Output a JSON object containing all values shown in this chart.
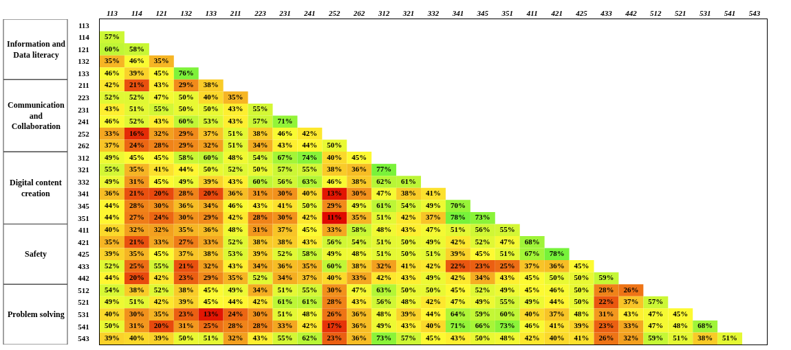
{
  "chart_data": {
    "type": "heatmap",
    "categories": [
      "113",
      "114",
      "121",
      "132",
      "133",
      "211",
      "223",
      "231",
      "241",
      "252",
      "262",
      "312",
      "321",
      "332",
      "341",
      "345",
      "351",
      "411",
      "421",
      "425",
      "433",
      "442",
      "512",
      "521",
      "531",
      "541",
      "543"
    ],
    "y_categories": [
      "113",
      "114",
      "121",
      "132",
      "133",
      "211",
      "223",
      "231",
      "241",
      "252",
      "262",
      "312",
      "321",
      "332",
      "341",
      "345",
      "351",
      "411",
      "421",
      "425",
      "433",
      "442",
      "512",
      "521",
      "531",
      "541",
      "543"
    ],
    "annotations": [
      "Information and Data literacy",
      "Communication and Collaboration",
      "Digital content creation",
      "Safety",
      "Problem solving"
    ],
    "cells": [
      [
        null,
        null,
        null,
        null,
        null,
        null,
        null,
        null,
        null,
        null,
        null,
        null,
        null,
        null,
        null,
        null,
        null,
        null,
        null,
        null,
        null,
        null,
        null,
        null,
        null,
        null,
        null
      ],
      [
        57,
        null,
        null,
        null,
        null,
        null,
        null,
        null,
        null,
        null,
        null,
        null,
        null,
        null,
        null,
        null,
        null,
        null,
        null,
        null,
        null,
        null,
        null,
        null,
        null,
        null,
        null
      ],
      [
        60,
        58,
        null,
        null,
        null,
        null,
        null,
        null,
        null,
        null,
        null,
        null,
        null,
        null,
        null,
        null,
        null,
        null,
        null,
        null,
        null,
        null,
        null,
        null,
        null,
        null,
        null
      ],
      [
        35,
        46,
        35,
        null,
        null,
        null,
        null,
        null,
        null,
        null,
        null,
        null,
        null,
        null,
        null,
        null,
        null,
        null,
        null,
        null,
        null,
        null,
        null,
        null,
        null,
        null,
        null
      ],
      [
        46,
        39,
        45,
        76,
        null,
        null,
        null,
        null,
        null,
        null,
        null,
        null,
        null,
        null,
        null,
        null,
        null,
        null,
        null,
        null,
        null,
        null,
        null,
        null,
        null,
        null,
        null
      ],
      [
        42,
        21,
        43,
        29,
        38,
        null,
        null,
        null,
        null,
        null,
        null,
        null,
        null,
        null,
        null,
        null,
        null,
        null,
        null,
        null,
        null,
        null,
        null,
        null,
        null,
        null,
        null
      ],
      [
        52,
        52,
        47,
        50,
        40,
        35,
        null,
        null,
        null,
        null,
        null,
        null,
        null,
        null,
        null,
        null,
        null,
        null,
        null,
        null,
        null,
        null,
        null,
        null,
        null,
        null,
        null
      ],
      [
        43,
        51,
        55,
        50,
        50,
        43,
        55,
        null,
        null,
        null,
        null,
        null,
        null,
        null,
        null,
        null,
        null,
        null,
        null,
        null,
        null,
        null,
        null,
        null,
        null,
        null,
        null
      ],
      [
        46,
        52,
        43,
        60,
        53,
        43,
        57,
        71,
        null,
        null,
        null,
        null,
        null,
        null,
        null,
        null,
        null,
        null,
        null,
        null,
        null,
        null,
        null,
        null,
        null,
        null,
        null
      ],
      [
        33,
        16,
        32,
        29,
        37,
        51,
        38,
        46,
        42,
        null,
        null,
        null,
        null,
        null,
        null,
        null,
        null,
        null,
        null,
        null,
        null,
        null,
        null,
        null,
        null,
        null,
        null
      ],
      [
        37,
        24,
        28,
        29,
        32,
        51,
        34,
        43,
        44,
        50,
        null,
        null,
        null,
        null,
        null,
        null,
        null,
        null,
        null,
        null,
        null,
        null,
        null,
        null,
        null,
        null,
        null
      ],
      [
        49,
        45,
        45,
        58,
        60,
        48,
        54,
        67,
        74,
        40,
        45,
        null,
        null,
        null,
        null,
        null,
        null,
        null,
        null,
        null,
        null,
        null,
        null,
        null,
        null,
        null,
        null
      ],
      [
        55,
        35,
        41,
        44,
        50,
        52,
        50,
        57,
        55,
        38,
        36,
        77,
        null,
        null,
        null,
        null,
        null,
        null,
        null,
        null,
        null,
        null,
        null,
        null,
        null,
        null,
        null
      ],
      [
        49,
        31,
        45,
        49,
        39,
        43,
        60,
        56,
        63,
        46,
        38,
        62,
        61,
        null,
        null,
        null,
        null,
        null,
        null,
        null,
        null,
        null,
        null,
        null,
        null,
        null,
        null
      ],
      [
        36,
        21,
        20,
        28,
        20,
        36,
        31,
        30,
        40,
        13,
        30,
        47,
        38,
        41,
        null,
        null,
        null,
        null,
        null,
        null,
        null,
        null,
        null,
        null,
        null,
        null,
        null
      ],
      [
        44,
        28,
        30,
        36,
        34,
        46,
        43,
        41,
        50,
        29,
        49,
        61,
        54,
        49,
        70,
        null,
        null,
        null,
        null,
        null,
        null,
        null,
        null,
        null,
        null,
        null,
        null
      ],
      [
        44,
        27,
        24,
        30,
        29,
        42,
        28,
        30,
        42,
        11,
        35,
        51,
        42,
        37,
        78,
        73,
        null,
        null,
        null,
        null,
        null,
        null,
        null,
        null,
        null,
        null,
        null
      ],
      [
        40,
        32,
        32,
        35,
        36,
        48,
        31,
        37,
        45,
        33,
        58,
        48,
        43,
        47,
        51,
        56,
        55,
        null,
        null,
        null,
        null,
        null,
        null,
        null,
        null,
        null,
        null
      ],
      [
        35,
        21,
        33,
        27,
        33,
        52,
        38,
        38,
        43,
        56,
        54,
        51,
        50,
        49,
        42,
        52,
        47,
        68,
        null,
        null,
        null,
        null,
        null,
        null,
        null,
        null,
        null
      ],
      [
        39,
        35,
        45,
        37,
        38,
        53,
        39,
        52,
        58,
        49,
        48,
        51,
        50,
        51,
        39,
        45,
        51,
        67,
        78,
        null,
        null,
        null,
        null,
        null,
        null,
        null,
        null
      ],
      [
        52,
        25,
        55,
        21,
        32,
        43,
        34,
        36,
        35,
        60,
        38,
        32,
        41,
        42,
        22,
        23,
        25,
        37,
        36,
        45,
        null,
        null,
        null,
        null,
        null,
        null,
        null
      ],
      [
        44,
        20,
        42,
        23,
        29,
        35,
        52,
        34,
        37,
        40,
        33,
        42,
        43,
        49,
        42,
        34,
        43,
        45,
        50,
        50,
        59,
        null,
        null,
        null,
        null,
        null,
        null
      ],
      [
        54,
        38,
        52,
        38,
        45,
        49,
        34,
        51,
        55,
        30,
        47,
        63,
        50,
        50,
        45,
        52,
        49,
        45,
        46,
        50,
        28,
        26,
        null,
        null,
        null,
        null,
        null
      ],
      [
        49,
        51,
        42,
        39,
        45,
        44,
        42,
        61,
        61,
        28,
        43,
        56,
        48,
        42,
        47,
        49,
        55,
        49,
        44,
        50,
        22,
        37,
        57,
        null,
        null,
        null,
        null
      ],
      [
        40,
        30,
        35,
        23,
        13,
        24,
        30,
        51,
        48,
        26,
        36,
        48,
        39,
        44,
        64,
        59,
        60,
        40,
        37,
        48,
        31,
        43,
        47,
        45,
        null,
        null,
        null
      ],
      [
        50,
        31,
        20,
        31,
        25,
        28,
        28,
        33,
        42,
        17,
        36,
        49,
        43,
        40,
        71,
        66,
        73,
        46,
        41,
        39,
        23,
        33,
        47,
        48,
        68,
        null,
        null
      ],
      [
        39,
        40,
        39,
        50,
        51,
        32,
        43,
        55,
        62,
        23,
        36,
        73,
        57,
        45,
        43,
        50,
        48,
        42,
        40,
        41,
        26,
        32,
        59,
        51,
        38,
        51,
        null
      ]
    ],
    "cell_labels": [
      [
        null,
        null,
        null,
        null,
        null,
        null,
        null,
        null,
        null,
        null,
        null,
        null,
        null,
        null,
        null,
        null,
        null,
        null,
        null,
        null,
        null,
        null,
        null,
        null,
        null,
        null,
        null
      ],
      [
        "57%",
        null,
        null,
        null,
        null,
        null,
        null,
        null,
        null,
        null,
        null,
        null,
        null,
        null,
        null,
        null,
        null,
        null,
        null,
        null,
        null,
        null,
        null,
        null,
        null,
        null,
        null
      ],
      [
        "60%",
        "58%",
        null,
        null,
        null,
        null,
        null,
        null,
        null,
        null,
        null,
        null,
        null,
        null,
        null,
        null,
        null,
        null,
        null,
        null,
        null,
        null,
        null,
        null,
        null,
        null,
        null
      ],
      [
        "35%",
        "46%",
        "35%",
        null,
        null,
        null,
        null,
        null,
        null,
        null,
        null,
        null,
        null,
        null,
        null,
        null,
        null,
        null,
        null,
        null,
        null,
        null,
        null,
        null,
        null,
        null,
        null
      ],
      [
        "46%",
        "39%",
        "45%",
        "76%",
        null,
        null,
        null,
        null,
        null,
        null,
        null,
        null,
        null,
        null,
        null,
        null,
        null,
        null,
        null,
        null,
        null,
        null,
        null,
        null,
        null,
        null,
        null
      ],
      [
        "42%",
        "21%",
        "43%",
        "29%",
        "38%",
        null,
        null,
        null,
        null,
        null,
        null,
        null,
        null,
        null,
        null,
        null,
        null,
        null,
        null,
        null,
        null,
        null,
        null,
        null,
        null,
        null,
        null
      ],
      [
        "52%",
        "52%",
        "47%",
        "50%",
        "40%",
        "35%",
        null,
        null,
        null,
        null,
        null,
        null,
        null,
        null,
        null,
        null,
        null,
        null,
        null,
        null,
        null,
        null,
        null,
        null,
        null,
        null,
        null
      ],
      [
        "43%",
        "51%",
        "55%",
        "50%",
        "50%",
        "43%",
        "55%",
        null,
        null,
        null,
        null,
        null,
        null,
        null,
        null,
        null,
        null,
        null,
        null,
        null,
        null,
        null,
        null,
        null,
        null,
        null,
        null
      ],
      [
        "46%",
        "52%",
        "43%",
        "60%",
        "53%",
        "43%",
        "57%",
        "71%",
        null,
        null,
        null,
        null,
        null,
        null,
        null,
        null,
        null,
        null,
        null,
        null,
        null,
        null,
        null,
        null,
        null,
        null,
        null
      ],
      [
        "33%",
        "16%",
        "32%",
        "29%",
        "37%",
        "51%",
        "38%",
        "46%",
        "42%",
        null,
        null,
        null,
        null,
        null,
        null,
        null,
        null,
        null,
        null,
        null,
        null,
        null,
        null,
        null,
        null,
        null,
        null
      ],
      [
        "37%",
        "24%",
        "28%",
        "29%",
        "32%",
        "51%",
        "34%",
        "43%",
        "44%",
        "50%",
        null,
        null,
        null,
        null,
        null,
        null,
        null,
        null,
        null,
        null,
        null,
        null,
        null,
        null,
        null,
        null,
        null
      ],
      [
        "49%",
        "45%",
        "45%",
        "58%",
        "60%",
        "48%",
        "54%",
        "67%",
        "74%",
        "40%",
        "45%",
        null,
        null,
        null,
        null,
        null,
        null,
        null,
        null,
        null,
        null,
        null,
        null,
        null,
        null,
        null,
        null
      ],
      [
        "55%",
        "35%",
        "41%",
        "44%",
        "50%",
        "52%",
        "50%",
        "57%",
        "55%",
        "38%",
        "36%",
        "77%",
        null,
        null,
        null,
        null,
        null,
        null,
        null,
        null,
        null,
        null,
        null,
        null,
        null,
        null,
        null
      ],
      [
        "49%",
        "31%",
        "45%",
        "49%",
        "39%",
        "43%",
        "60%",
        "56%",
        "63%",
        "46%",
        "38%",
        "62%",
        "61%",
        null,
        null,
        null,
        null,
        null,
        null,
        null,
        null,
        null,
        null,
        null,
        null,
        null,
        null
      ],
      [
        "36%",
        "21%",
        "20%",
        "28%",
        "20%",
        "36%",
        "31%",
        "30%",
        "40%",
        "13%",
        "30%",
        "47%",
        "38%",
        "41%",
        null,
        null,
        null,
        null,
        null,
        null,
        null,
        null,
        null,
        null,
        null,
        null,
        null
      ],
      [
        "44%",
        "28%",
        "30%",
        "36%",
        "34%",
        "46%",
        "43%",
        "41%",
        "50%",
        "29%",
        "49%",
        "61%",
        "54%",
        "49%",
        "70%",
        null,
        null,
        null,
        null,
        null,
        null,
        null,
        null,
        null,
        null,
        null,
        null
      ],
      [
        "44%",
        "27%",
        "24%",
        "30%",
        "29%",
        "42%",
        "28%",
        "30%",
        "42%",
        "11%",
        "35%",
        "51%",
        "42%",
        "37%",
        "78%",
        "73%",
        null,
        null,
        null,
        null,
        null,
        null,
        null,
        null,
        null,
        null,
        null
      ],
      [
        "40%",
        "32%",
        "32%",
        "35%",
        "36%",
        "48%",
        "31%",
        "37%",
        "45%",
        "33%",
        "58%",
        "48%",
        "43%",
        "47%",
        "51%",
        "56%",
        "55%",
        null,
        null,
        null,
        null,
        null,
        null,
        null,
        null,
        null,
        null
      ],
      [
        "35%",
        "21%",
        "33%",
        "27%",
        "33%",
        "52%",
        "38%",
        "38%",
        "43%",
        "56%",
        "54%",
        "51%",
        "50%",
        "49%",
        "42%",
        "52%",
        "47%",
        "68%",
        null,
        null,
        null,
        null,
        null,
        null,
        null,
        null,
        null
      ],
      [
        "39%",
        "35%",
        "45%",
        "37%",
        "38%",
        "53%",
        "39%",
        "52%",
        "58%",
        "49%",
        "48%",
        "51%",
        "50%",
        "51%",
        "39%",
        "45%",
        "51%",
        "67%",
        "78%",
        null,
        null,
        null,
        null,
        null,
        null,
        null,
        null
      ],
      [
        "52%",
        "25%",
        "55%",
        "21%",
        "32%",
        "43%",
        "34%",
        "36%",
        "35%",
        "60%",
        "38%",
        "32%",
        "41%",
        "42%",
        "22%",
        "23%",
        "25%",
        "37%",
        "36%",
        "45%",
        null,
        null,
        null,
        null,
        null,
        null,
        null
      ],
      [
        "44%",
        "20%",
        "42%",
        "23%",
        "29%",
        "35%",
        "52%",
        "34%",
        "37%",
        "40%",
        "33%",
        "42%",
        "43%",
        "49%",
        "42%",
        "34%",
        "43%",
        "45%",
        "50%",
        "50%",
        "59%",
        null,
        null,
        null,
        null,
        null,
        null
      ],
      [
        "54%",
        "38%",
        "52%",
        "38%",
        "45%",
        "49%",
        "34%",
        "51%",
        "55%",
        "30%",
        "47%",
        "63%",
        "50%",
        "50%",
        "45%",
        "52%",
        "49%",
        "45%",
        "46%",
        "50%",
        "28%",
        "26%",
        null,
        null,
        null,
        null,
        null
      ],
      [
        "49%",
        "51%",
        "42%",
        "39%",
        "45%",
        "44%",
        "42%",
        "61%",
        "61%",
        "28%",
        "43%",
        "56%",
        "48%",
        "42%",
        "47%",
        "49%",
        "55%",
        "49%",
        "44%",
        "50%",
        "22%",
        "37%",
        "57%",
        null,
        null,
        null,
        null
      ],
      [
        "40%",
        "30%",
        "35%",
        "23%",
        "13%",
        "24%",
        "30%",
        "51%",
        "48%",
        "26%",
        "36%",
        "48%",
        "39%",
        "44%",
        "64%",
        "59%",
        "60%",
        "40%",
        "37%",
        "48%",
        "31%",
        "43%",
        "47%",
        "45%",
        null,
        null,
        null
      ],
      [
        "50%",
        "31%",
        "20%",
        "31%",
        "25%",
        "28%",
        "28%",
        "33%",
        "42%",
        "17%",
        "36%",
        "49%",
        "43%",
        "40%",
        "71%",
        "66%",
        "73%",
        "46%",
        "41%",
        "39%",
        "23%",
        "33%",
        "47%",
        "48%",
        "68%",
        null,
        null
      ],
      [
        "39%",
        "40%",
        "39%",
        "50%",
        "51%",
        "32%",
        "43%",
        "55%",
        "62%",
        "23%",
        "36%",
        "73%",
        "57%",
        "45%",
        "43%",
        "50%",
        "48%",
        "42%",
        "40%",
        "41%",
        "26%",
        "32%",
        "59%",
        "51%",
        "38%",
        "51%",
        null
      ]
    ]
  }
}
